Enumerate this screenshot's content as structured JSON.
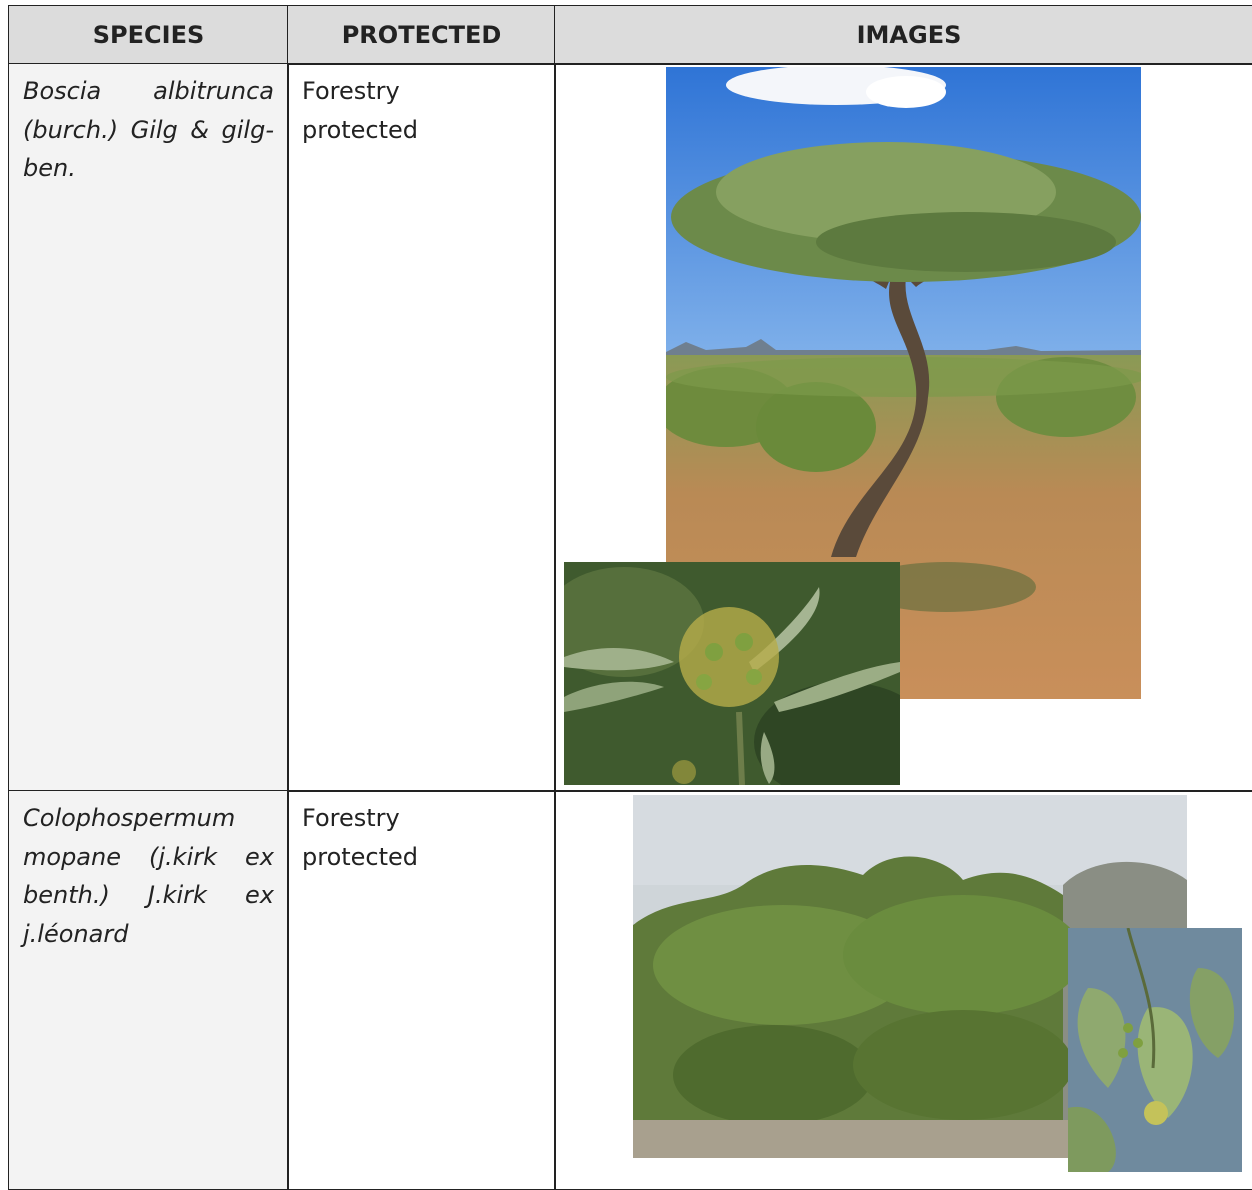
{
  "header": {
    "columns": [
      "SPECIES",
      "PROTECTED",
      "IMAGES"
    ]
  },
  "rows": [
    {
      "species": "Boscia albitrunca (burch.) Gilg & gilg-ben.",
      "protected": "Forestry protected"
    },
    {
      "species": "Colophospermum mopane (j.kirk ex benth.) J.kirk ex j.léonard",
      "protected": "Forestry protected"
    }
  ]
}
